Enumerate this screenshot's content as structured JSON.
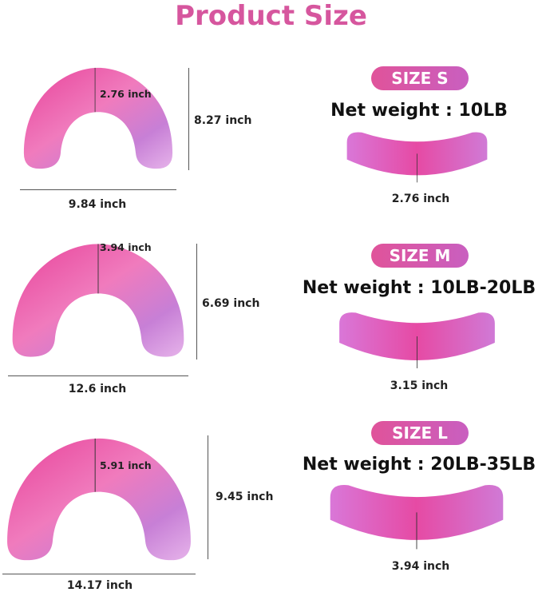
{
  "title": "Product Size",
  "colors": {
    "title": "#d6569e",
    "badge": "#d456a8",
    "pillow_light": "#e6a7e3",
    "pillow_dark": "#e8439a"
  },
  "sizes": [
    {
      "badge": "SIZE S",
      "net_weight": "Net weight : 10LB",
      "width": "9.84 inch",
      "height": "8.27 inch",
      "thickness": "2.76 inch",
      "side_thickness": "2.76 inch"
    },
    {
      "badge": "SIZE M",
      "net_weight": "Net weight : 10LB-20LB",
      "width": "12.6 inch",
      "height": "6.69 inch",
      "thickness": "3.94 inch",
      "side_thickness": "3.15 inch"
    },
    {
      "badge": "SIZE L",
      "net_weight": "Net weight : 20LB-35LB",
      "width": "14.17 inch",
      "height": "9.45 inch",
      "thickness": "5.91 inch",
      "side_thickness": "3.94 inch"
    }
  ]
}
